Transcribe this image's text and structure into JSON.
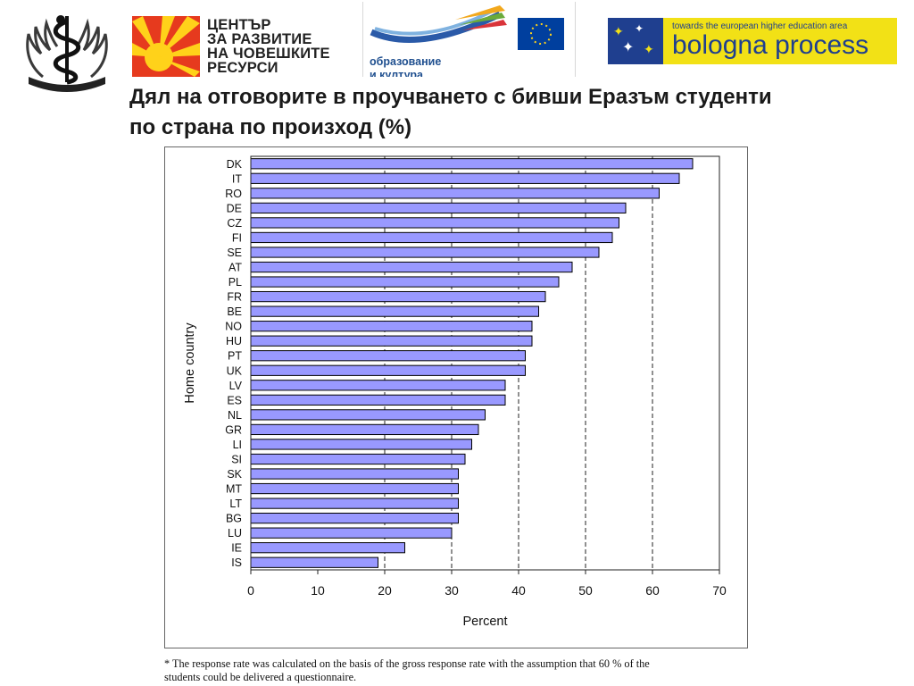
{
  "header": {
    "emblem_icon": "caduceus-emblem-icon",
    "hrdc_logo": {
      "icon": "sun-rays-icon",
      "lines": [
        "ЦЕНТЪР",
        "ЗА РАЗВИТИЕ",
        "НА ЧОВЕШКИТЕ",
        "РЕСУРСИ"
      ],
      "color": "#e63a1e"
    },
    "llp_logo": {
      "icon": "lifelong-learning-swoosh-icon",
      "eu_flag_icon": "eu-flag-icon",
      "lines": [
        "образование",
        "и култура"
      ],
      "color": "#1f4f8f"
    },
    "bologna_logo": {
      "tagline": "towards the european higher education area",
      "name": "bologna process",
      "icon": "stars-cluster-icon",
      "bg_color": "#f2e116",
      "text_color": "#1f3f8f"
    }
  },
  "slide": {
    "title_lines": [
      "Дял на отговорите в проучването с бивши Еразъм студенти",
      "по страна по произход (%)"
    ]
  },
  "chart_data": {
    "type": "bar",
    "orientation": "horizontal",
    "categories": [
      "DK",
      "IT",
      "RO",
      "DE",
      "CZ",
      "FI",
      "SE",
      "AT",
      "PL",
      "FR",
      "BE",
      "NO",
      "HU",
      "PT",
      "UK",
      "LV",
      "ES",
      "NL",
      "GR",
      "LI",
      "SI",
      "SK",
      "MT",
      "LT",
      "BG",
      "LU",
      "IE",
      "IS"
    ],
    "values": [
      66,
      64,
      61,
      56,
      55,
      54,
      52,
      48,
      46,
      44,
      43,
      42,
      42,
      41,
      41,
      38,
      38,
      35,
      34,
      33,
      32,
      31,
      31,
      31,
      31,
      30,
      23,
      19
    ],
    "xlabel": "Percent",
    "ylabel": "Home country",
    "xlim": [
      0,
      70
    ],
    "xticks": [
      "0",
      "10",
      "20",
      "30",
      "40",
      "50",
      "60",
      "70"
    ],
    "reference_lines": [
      20,
      30,
      40,
      50,
      60
    ],
    "bar_color": "#9999ff",
    "bar_outline": "#000000"
  },
  "footnote": {
    "lines": [
      "* The response rate was calculated on the basis of the gross response rate with the assumption that 60 % of the",
      "students could be delivered a questionnaire."
    ]
  }
}
